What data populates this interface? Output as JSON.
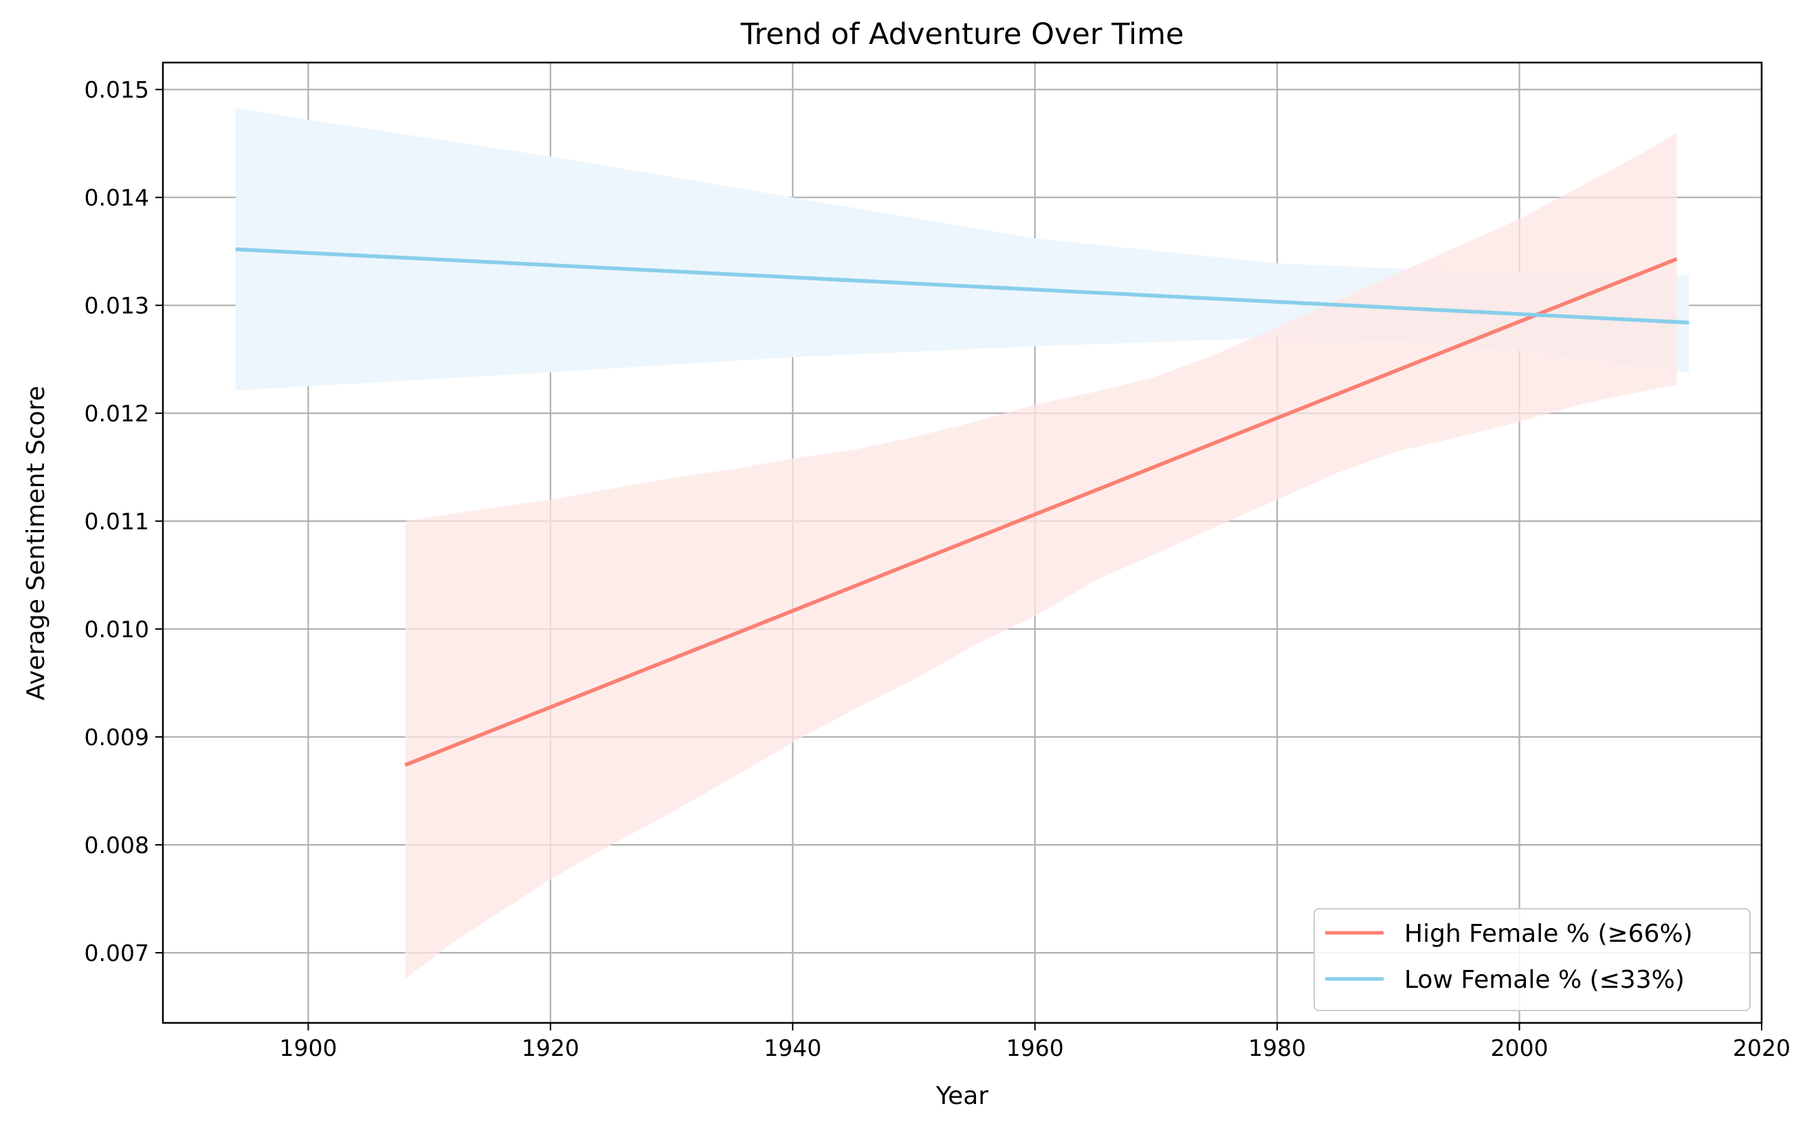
{
  "chart_data": {
    "type": "line",
    "title": "Trend of Adventure Over Time",
    "xlabel": "Year",
    "ylabel": "Average Sentiment Score",
    "xlim": [
      1888,
      2020
    ],
    "ylim": [
      0.00635,
      0.01525
    ],
    "xticks": [
      1900,
      1920,
      1940,
      1960,
      1980,
      2000,
      2020
    ],
    "yticks": [
      0.007,
      0.008,
      0.009,
      0.01,
      0.011,
      0.012,
      0.013,
      0.014,
      0.015
    ],
    "ytick_labels": [
      "0.007",
      "0.008",
      "0.009",
      "0.010",
      "0.011",
      "0.012",
      "0.013",
      "0.014",
      "0.015"
    ],
    "grid": true,
    "legend_position": "lower-right",
    "series": [
      {
        "name": "High Female % (≥66%)",
        "color": "#fa8072",
        "band_color": "#fde6e4",
        "x": [
          1908,
          2013
        ],
        "values": [
          0.00874,
          0.01343
        ],
        "band": {
          "x": [
            1908,
            1912,
            1920,
            1925,
            1930,
            1935,
            1940,
            1945,
            1950,
            1955,
            1960,
            1965,
            1970,
            1975,
            1980,
            1985,
            1990,
            1995,
            2000,
            2005,
            2010,
            2013
          ],
          "upper": [
            0.011,
            0.01107,
            0.0112,
            0.0113,
            0.0114,
            0.01148,
            0.01158,
            0.01166,
            0.01178,
            0.01192,
            0.01208,
            0.0122,
            0.01234,
            0.01255,
            0.0128,
            0.01305,
            0.0133,
            0.01355,
            0.0138,
            0.0141,
            0.0144,
            0.0146
          ],
          "lower": [
            0.00676,
            0.0071,
            0.00768,
            0.008,
            0.0083,
            0.00862,
            0.00895,
            0.00925,
            0.00953,
            0.00985,
            0.01012,
            0.01045,
            0.0107,
            0.01095,
            0.0112,
            0.01145,
            0.01165,
            0.01178,
            0.01192,
            0.01208,
            0.0122,
            0.01226
          ]
        }
      },
      {
        "name": "Low Female % (≤33%)",
        "color": "#87ceeb",
        "band_color": "#edf6fc",
        "x": [
          1894,
          2014
        ],
        "values": [
          0.01352,
          0.01284
        ],
        "band": {
          "x": [
            1894,
            1900,
            1920,
            1940,
            1960,
            1980,
            1990,
            2000,
            2014
          ],
          "upper": [
            0.01483,
            0.01472,
            0.01438,
            0.014,
            0.01362,
            0.01339,
            0.01334,
            0.0133,
            0.01328
          ],
          "lower": [
            0.01221,
            0.01225,
            0.01238,
            0.01252,
            0.01262,
            0.0127,
            0.01268,
            0.01258,
            0.01238
          ]
        }
      }
    ]
  }
}
